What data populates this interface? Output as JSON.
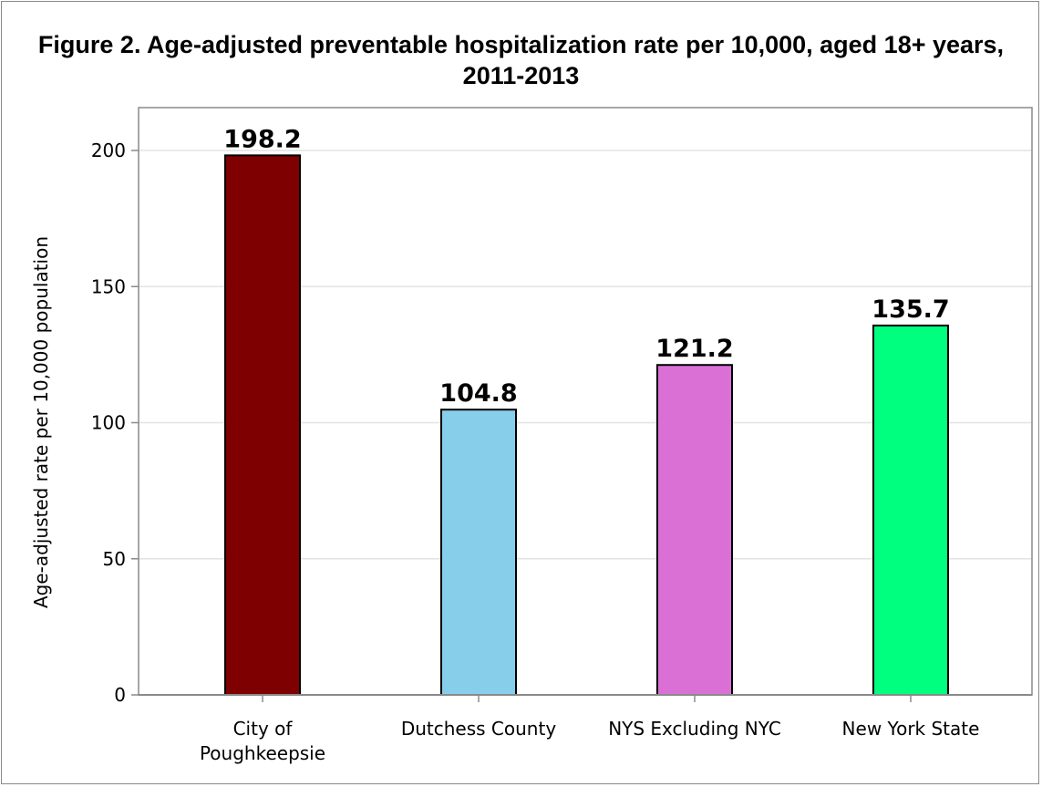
{
  "chart_data": {
    "type": "bar",
    "title": "Figure 2. Age-adjusted preventable hospitalization rate per 10,000, aged 18+ years, 2011-2013",
    "xlabel": "",
    "ylabel": "Age-adjusted rate per 10,000 population",
    "categories": [
      "City of Poughkeepsie",
      "Dutchess County",
      "NYS Excluding NYC",
      "New York State"
    ],
    "category_lines": [
      [
        "City of",
        "Poughkeepsie"
      ],
      [
        "Dutchess County"
      ],
      [
        "NYS Excluding NYC"
      ],
      [
        "New York State"
      ]
    ],
    "values": [
      198.2,
      104.8,
      121.2,
      135.7
    ],
    "value_labels": [
      "198.2",
      "104.8",
      "121.2",
      "135.7"
    ],
    "colors": [
      "#7f0000",
      "#87ceeb",
      "#da70d6",
      "#00ff7f"
    ],
    "ylim": [
      0,
      200
    ],
    "yticks": [
      0,
      50,
      100,
      150,
      200
    ],
    "ytick_labels": [
      "0",
      "50",
      "100",
      "150",
      "200"
    ],
    "grid": true,
    "legend": "none"
  }
}
